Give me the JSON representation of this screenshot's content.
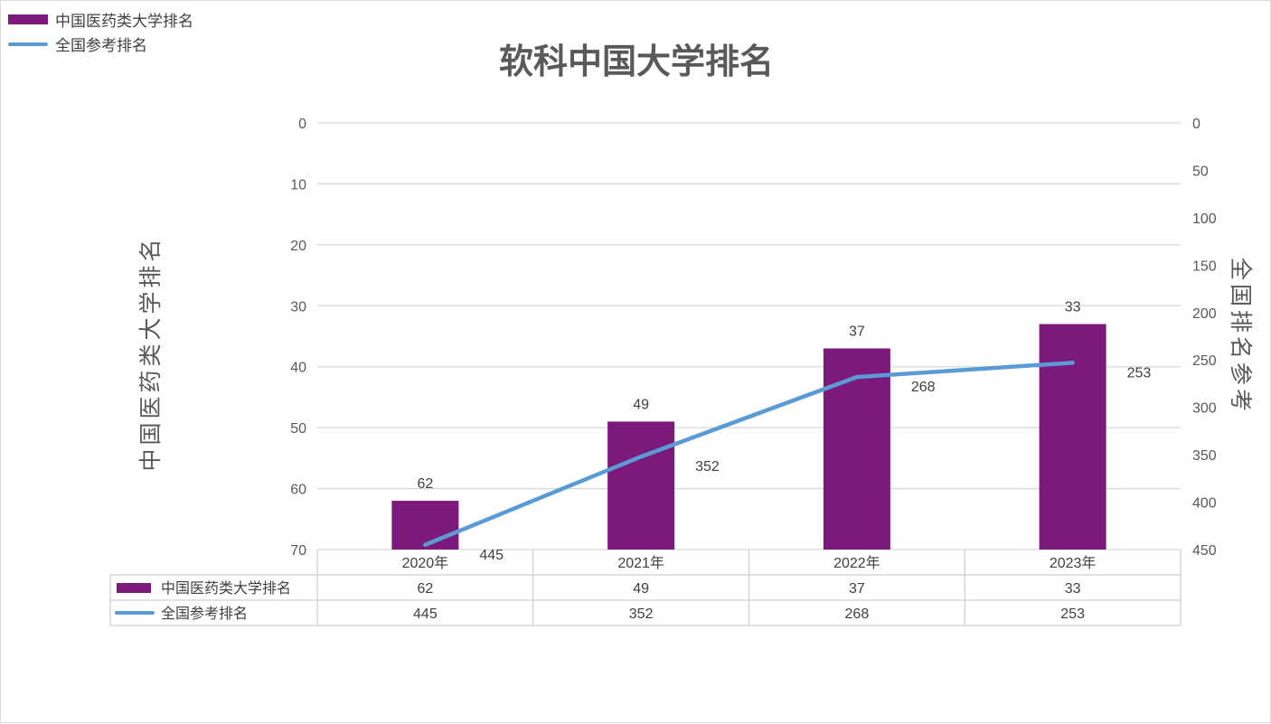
{
  "legend": [
    {
      "label": "中国医药类大学排名",
      "kind": "bar",
      "color": "#7B1A7B"
    },
    {
      "label": "全国参考排名",
      "kind": "line",
      "color": "#5B9BD5"
    }
  ],
  "chart_data": {
    "type": "bar",
    "title": "软科中国大学排名",
    "categories": [
      "2020年",
      "2021年",
      "2022年",
      "2023年"
    ],
    "series": [
      {
        "name": "中国医药类大学排名",
        "type": "bar",
        "axis": "left",
        "color": "#7B1A7B",
        "values": [
          62,
          49,
          37,
          33
        ]
      },
      {
        "name": "全国参考排名",
        "type": "line",
        "axis": "right",
        "color": "#5B9BD5",
        "values": [
          445,
          352,
          268,
          253
        ]
      }
    ],
    "ylabel": "中国医药类大学排名",
    "y2label": "全国排名参考",
    "ylim": [
      0,
      70
    ],
    "y2lim": [
      0,
      450
    ],
    "y_ticks": [
      0,
      10,
      20,
      30,
      40,
      50,
      60,
      70
    ],
    "y2_ticks": [
      0,
      50,
      100,
      150,
      200,
      250,
      300,
      350,
      400,
      450
    ],
    "y_reversed": true,
    "grid": true,
    "legend_position": "top-left",
    "data_table": true
  }
}
